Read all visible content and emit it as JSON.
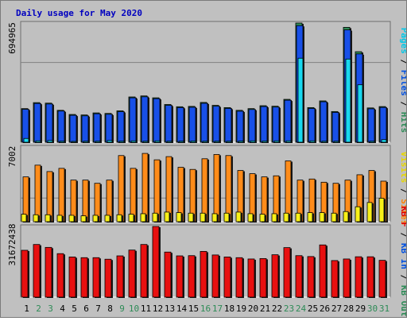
{
  "title": "Daily usage for May 2020",
  "legend": {
    "top": [
      {
        "text": "Pages",
        "color": "#00c8e8"
      },
      {
        "text": " / ",
        "color": "#000000"
      },
      {
        "text": "Files",
        "color": "#0050e0"
      },
      {
        "text": " / ",
        "color": "#000000"
      },
      {
        "text": "Hits",
        "color": "#2e8b57"
      }
    ],
    "middle": [
      {
        "text": "Visits",
        "color": "#e8d800"
      },
      {
        "text": " / ",
        "color": "#000000"
      },
      {
        "text": "Sites",
        "color": "#ff8000"
      }
    ],
    "bottom": [
      {
        "text": "KB F",
        "color": "#e00000"
      },
      {
        "text": " / ",
        "color": "#000000"
      },
      {
        "text": "KB In",
        "color": "#0050e0"
      },
      {
        "text": " / ",
        "color": "#000000"
      },
      {
        "text": "KB Out",
        "color": "#2e8b57"
      }
    ]
  },
  "colors": {
    "hits": "#2e8b57",
    "files": "#1850e8",
    "pages": "#18d8f0",
    "sites": "#ff8c1a",
    "visits": "#f8f018",
    "kbf": "#e81010",
    "title": "#0000c0",
    "weekend_label": "#2e8b57"
  },
  "chart_data": [
    {
      "type": "bar",
      "panel": "hits-files-pages",
      "ymax_label": "694965",
      "ylim": [
        0,
        694965
      ],
      "series": [
        {
          "name": "Hits",
          "values": [
            196000,
            231000,
            228000,
            186000,
            162000,
            159000,
            171000,
            168000,
            183000,
            264000,
            270000,
            259000,
            220000,
            207000,
            209000,
            232000,
            215000,
            202000,
            186000,
            196000,
            213000,
            210000,
            250000,
            694965,
            202000,
            241000,
            179000,
            670000,
            528000,
            200000,
            208000
          ]
        },
        {
          "name": "Files",
          "values": [
            192000,
            226000,
            223000,
            182000,
            157000,
            154000,
            166000,
            163000,
            178000,
            259000,
            265000,
            254000,
            215000,
            202000,
            204000,
            227000,
            210000,
            197000,
            181000,
            191000,
            208000,
            205000,
            245000,
            680000,
            197000,
            236000,
            174000,
            655000,
            515000,
            195000,
            203000
          ]
        },
        {
          "name": "Pages",
          "values": [
            22000,
            8000,
            10000,
            6000,
            5000,
            6000,
            6000,
            10000,
            6000,
            8000,
            6000,
            8000,
            6000,
            6000,
            7000,
            6000,
            6000,
            6000,
            7000,
            8000,
            7000,
            8000,
            8000,
            490000,
            8000,
            6000,
            6000,
            485000,
            335000,
            6000,
            15000
          ]
        }
      ]
    },
    {
      "type": "bar",
      "panel": "sites-visits",
      "ymax_label": "7002",
      "ylim": [
        0,
        7002
      ],
      "series": [
        {
          "name": "Sites",
          "values": [
            4200,
            5300,
            4700,
            5000,
            3900,
            3900,
            3600,
            3900,
            6200,
            5000,
            6400,
            5800,
            6100,
            5100,
            4900,
            5900,
            6300,
            6200,
            4800,
            4500,
            4200,
            4300,
            5700,
            3900,
            4000,
            3700,
            3600,
            3900,
            4400,
            4800,
            3800
          ]
        },
        {
          "name": "Visits",
          "values": [
            700,
            650,
            650,
            600,
            600,
            550,
            600,
            600,
            650,
            700,
            750,
            800,
            900,
            850,
            800,
            800,
            750,
            800,
            900,
            750,
            700,
            750,
            800,
            800,
            850,
            850,
            800,
            950,
            1400,
            1800,
            2200
          ]
        }
      ]
    },
    {
      "type": "bar",
      "panel": "kbytes",
      "ymax_label": "31672438",
      "ylim": [
        0,
        31672438
      ],
      "series": [
        {
          "name": "KB F",
          "values": [
            21000000,
            23600000,
            22300000,
            19500000,
            18000000,
            17700000,
            17700000,
            17000000,
            18500000,
            21100000,
            23600000,
            31672438,
            20200000,
            18500000,
            18600000,
            20500000,
            18900000,
            18000000,
            17700000,
            17100000,
            17300000,
            19000000,
            22200000,
            18600000,
            18200000,
            23400000,
            16400000,
            17100000,
            18100000,
            18100000,
            16500000
          ]
        }
      ]
    }
  ],
  "x_labels": [
    "1",
    "2",
    "3",
    "4",
    "5",
    "6",
    "7",
    "8",
    "9",
    "10",
    "11",
    "12",
    "13",
    "14",
    "15",
    "16",
    "17",
    "18",
    "19",
    "20",
    "21",
    "22",
    "23",
    "24",
    "25",
    "26",
    "27",
    "28",
    "29",
    "30",
    "31"
  ],
  "weekend_days": [
    "2",
    "3",
    "9",
    "10",
    "16",
    "17",
    "23",
    "24",
    "30",
    "31"
  ]
}
